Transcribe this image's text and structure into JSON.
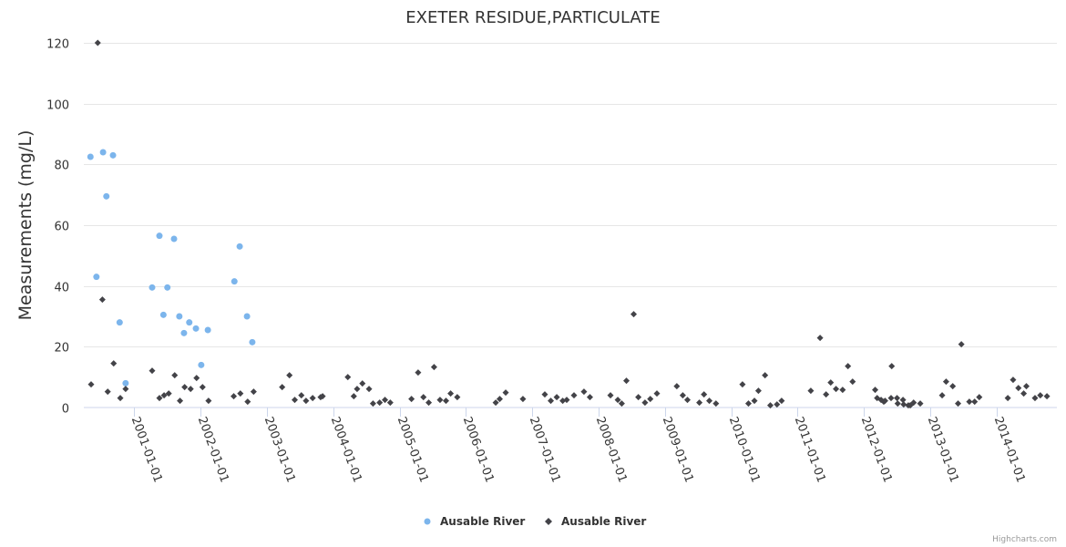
{
  "chart_data": {
    "type": "scatter",
    "title": "EXETER RESIDUE,PARTICULATE",
    "xlabel": "",
    "ylabel": "Measurements (mg/L)",
    "ylim": [
      0,
      120
    ],
    "xlim": [
      2000.24,
      2014.91
    ],
    "yticks": [
      0,
      20,
      40,
      60,
      80,
      100,
      120
    ],
    "xticks": [
      {
        "value": 2001,
        "label": "2001-01-01"
      },
      {
        "value": 2002,
        "label": "2002-01-01"
      },
      {
        "value": 2003,
        "label": "2003-01-01"
      },
      {
        "value": 2004,
        "label": "2004-01-01"
      },
      {
        "value": 2005,
        "label": "2005-01-01"
      },
      {
        "value": 2006,
        "label": "2006-01-01"
      },
      {
        "value": 2007,
        "label": "2007-01-01"
      },
      {
        "value": 2008,
        "label": "2008-01-01"
      },
      {
        "value": 2009,
        "label": "2009-01-01"
      },
      {
        "value": 2010,
        "label": "2010-01-01"
      },
      {
        "value": 2011,
        "label": "2011-01-01"
      },
      {
        "value": 2012,
        "label": "2012-01-01"
      },
      {
        "value": 2013,
        "label": "2013-01-01"
      },
      {
        "value": 2014,
        "label": "2014-01-01"
      }
    ],
    "grid": true,
    "legend_position": "bottom-center",
    "series": [
      {
        "name": "Ausable River",
        "color": "#7cb5ec",
        "marker": "circle",
        "points": [
          [
            2000.34,
            82.5
          ],
          [
            2000.43,
            43
          ],
          [
            2000.53,
            84
          ],
          [
            2000.58,
            69.5
          ],
          [
            2000.68,
            83
          ],
          [
            2000.78,
            28
          ],
          [
            2000.87,
            8
          ],
          [
            2001.27,
            39.5
          ],
          [
            2001.38,
            56.5
          ],
          [
            2001.44,
            30.5
          ],
          [
            2001.5,
            39.5
          ],
          [
            2001.6,
            55.5
          ],
          [
            2001.68,
            30
          ],
          [
            2001.75,
            24.5
          ],
          [
            2001.83,
            28
          ],
          [
            2001.93,
            26
          ],
          [
            2002.01,
            14
          ],
          [
            2002.11,
            25.5
          ],
          [
            2002.51,
            41.5
          ],
          [
            2002.59,
            53
          ],
          [
            2002.7,
            30
          ],
          [
            2002.78,
            21.5
          ]
        ]
      },
      {
        "name": "Ausable River",
        "color": "#434348",
        "marker": "diamond",
        "points": [
          [
            2000.35,
            7.6
          ],
          [
            2000.45,
            120
          ],
          [
            2000.52,
            35.5
          ],
          [
            2000.6,
            5.2
          ],
          [
            2000.69,
            14.5
          ],
          [
            2000.79,
            3.1
          ],
          [
            2000.87,
            6.1
          ],
          [
            2001.27,
            12.1
          ],
          [
            2001.38,
            3.1
          ],
          [
            2001.45,
            4.0
          ],
          [
            2001.52,
            4.6
          ],
          [
            2001.61,
            10.6
          ],
          [
            2001.69,
            2.2
          ],
          [
            2001.76,
            6.7
          ],
          [
            2001.85,
            6.1
          ],
          [
            2001.94,
            9.7
          ],
          [
            2002.03,
            6.7
          ],
          [
            2002.12,
            2.2
          ],
          [
            2002.5,
            3.7
          ],
          [
            2002.6,
            4.6
          ],
          [
            2002.71,
            1.9
          ],
          [
            2002.8,
            5.2
          ],
          [
            2003.23,
            6.7
          ],
          [
            2003.34,
            10.6
          ],
          [
            2003.42,
            2.5
          ],
          [
            2003.52,
            4.0
          ],
          [
            2003.59,
            2.2
          ],
          [
            2003.69,
            3.1
          ],
          [
            2003.81,
            3.4
          ],
          [
            2003.84,
            3.7
          ],
          [
            2004.22,
            10.0
          ],
          [
            2004.31,
            3.7
          ],
          [
            2004.36,
            6.1
          ],
          [
            2004.44,
            7.9
          ],
          [
            2004.54,
            6.1
          ],
          [
            2004.6,
            1.3
          ],
          [
            2004.7,
            1.6
          ],
          [
            2004.78,
            2.5
          ],
          [
            2004.86,
            1.6
          ],
          [
            2005.18,
            2.8
          ],
          [
            2005.28,
            11.5
          ],
          [
            2005.36,
            3.4
          ],
          [
            2005.44,
            1.6
          ],
          [
            2005.52,
            13.3
          ],
          [
            2005.61,
            2.5
          ],
          [
            2005.7,
            2.2
          ],
          [
            2005.77,
            4.6
          ],
          [
            2005.87,
            3.4
          ],
          [
            2006.45,
            1.6
          ],
          [
            2006.51,
            2.8
          ],
          [
            2006.6,
            4.9
          ],
          [
            2006.86,
            2.8
          ],
          [
            2007.19,
            4.3
          ],
          [
            2007.28,
            2.2
          ],
          [
            2007.37,
            3.4
          ],
          [
            2007.46,
            2.2
          ],
          [
            2007.52,
            2.5
          ],
          [
            2007.63,
            4.0
          ],
          [
            2007.78,
            5.2
          ],
          [
            2007.87,
            3.4
          ],
          [
            2008.18,
            4.0
          ],
          [
            2008.29,
            2.5
          ],
          [
            2008.35,
            1.3
          ],
          [
            2008.42,
            8.8
          ],
          [
            2008.53,
            30.7
          ],
          [
            2008.6,
            3.4
          ],
          [
            2008.7,
            1.6
          ],
          [
            2008.78,
            2.8
          ],
          [
            2008.88,
            4.6
          ],
          [
            2009.18,
            7.0
          ],
          [
            2009.27,
            4.0
          ],
          [
            2009.34,
            2.5
          ],
          [
            2009.52,
            1.6
          ],
          [
            2009.59,
            4.3
          ],
          [
            2009.67,
            2.2
          ],
          [
            2009.77,
            1.3
          ],
          [
            2010.17,
            7.6
          ],
          [
            2010.26,
            1.3
          ],
          [
            2010.35,
            2.2
          ],
          [
            2010.41,
            5.5
          ],
          [
            2010.51,
            10.6
          ],
          [
            2010.59,
            0.7
          ],
          [
            2010.69,
            1.0
          ],
          [
            2010.76,
            2.2
          ],
          [
            2011.2,
            5.5
          ],
          [
            2011.34,
            22.9
          ],
          [
            2011.43,
            4.3
          ],
          [
            2011.5,
            8.2
          ],
          [
            2011.58,
            6.1
          ],
          [
            2011.68,
            5.8
          ],
          [
            2011.76,
            13.6
          ],
          [
            2011.83,
            8.5
          ],
          [
            2012.17,
            5.8
          ],
          [
            2012.2,
            3.1
          ],
          [
            2012.26,
            2.5
          ],
          [
            2012.3,
            1.9
          ],
          [
            2012.32,
            2.2
          ],
          [
            2012.41,
            3.1
          ],
          [
            2012.42,
            13.6
          ],
          [
            2012.5,
            3.1
          ],
          [
            2012.51,
            1.3
          ],
          [
            2012.59,
            2.5
          ],
          [
            2012.6,
            1.0
          ],
          [
            2012.67,
            0.7
          ],
          [
            2012.7,
            0.7
          ],
          [
            2012.75,
            1.6
          ],
          [
            2012.85,
            1.3
          ],
          [
            2013.18,
            4.0
          ],
          [
            2013.24,
            8.5
          ],
          [
            2013.34,
            7.0
          ],
          [
            2013.42,
            1.3
          ],
          [
            2013.47,
            20.8
          ],
          [
            2013.59,
            1.9
          ],
          [
            2013.67,
            1.9
          ],
          [
            2013.74,
            3.4
          ],
          [
            2014.17,
            3.1
          ],
          [
            2014.25,
            9.1
          ],
          [
            2014.33,
            6.4
          ],
          [
            2014.41,
            4.6
          ],
          [
            2014.45,
            7.0
          ],
          [
            2014.58,
            3.1
          ],
          [
            2014.66,
            4.0
          ],
          [
            2014.76,
            3.7
          ]
        ]
      }
    ]
  },
  "credits": "Highcharts.com"
}
